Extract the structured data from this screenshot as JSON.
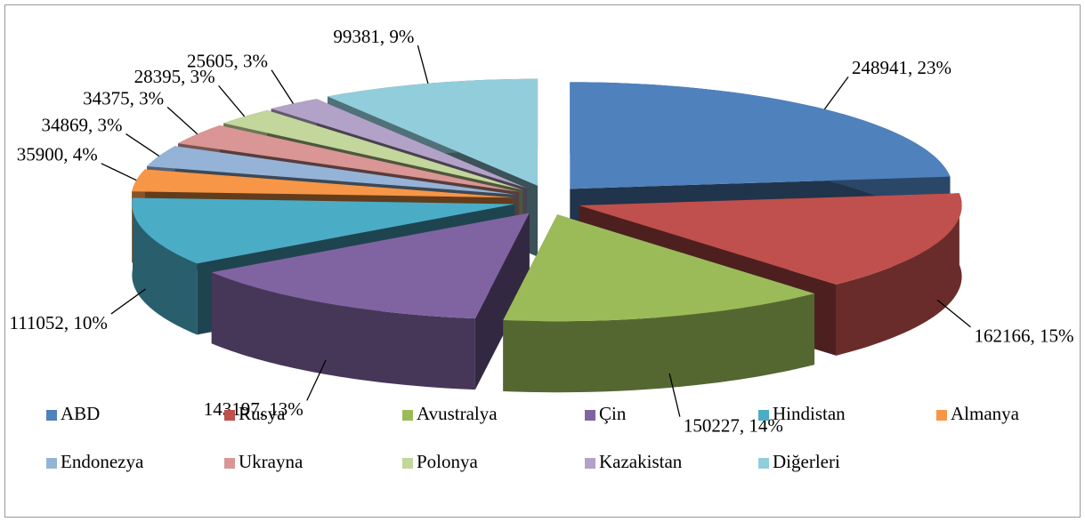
{
  "chart_data": {
    "type": "pie3d",
    "categories": [
      "ABD",
      "Rusya",
      "Avustralya",
      "Çin",
      "Hindistan",
      "Almanya",
      "Endonezya",
      "Ukrayna",
      "Polonya",
      "Kazakistan",
      "Diğerleri"
    ],
    "values": [
      248941,
      162166,
      150227,
      143197,
      111052,
      35900,
      34869,
      34375,
      28395,
      25605,
      99381
    ],
    "value_labels": [
      "248941, 23%",
      "162166, 15%",
      "150227, 14%",
      "143197, 13%",
      "111052, 10%",
      "35900, 4%",
      "34869, 3%",
      "34375, 3%",
      "28395, 3%",
      "25605, 3%",
      "99381, 9%"
    ],
    "colors": [
      "#4F81BD",
      "#C0504D",
      "#9BBB59",
      "#8064A2",
      "#4BACC6",
      "#F79646",
      "#95B3D7",
      "#D99694",
      "#C3D69B",
      "#B3A2C7",
      "#92CDDC"
    ],
    "legend": "bottom"
  }
}
